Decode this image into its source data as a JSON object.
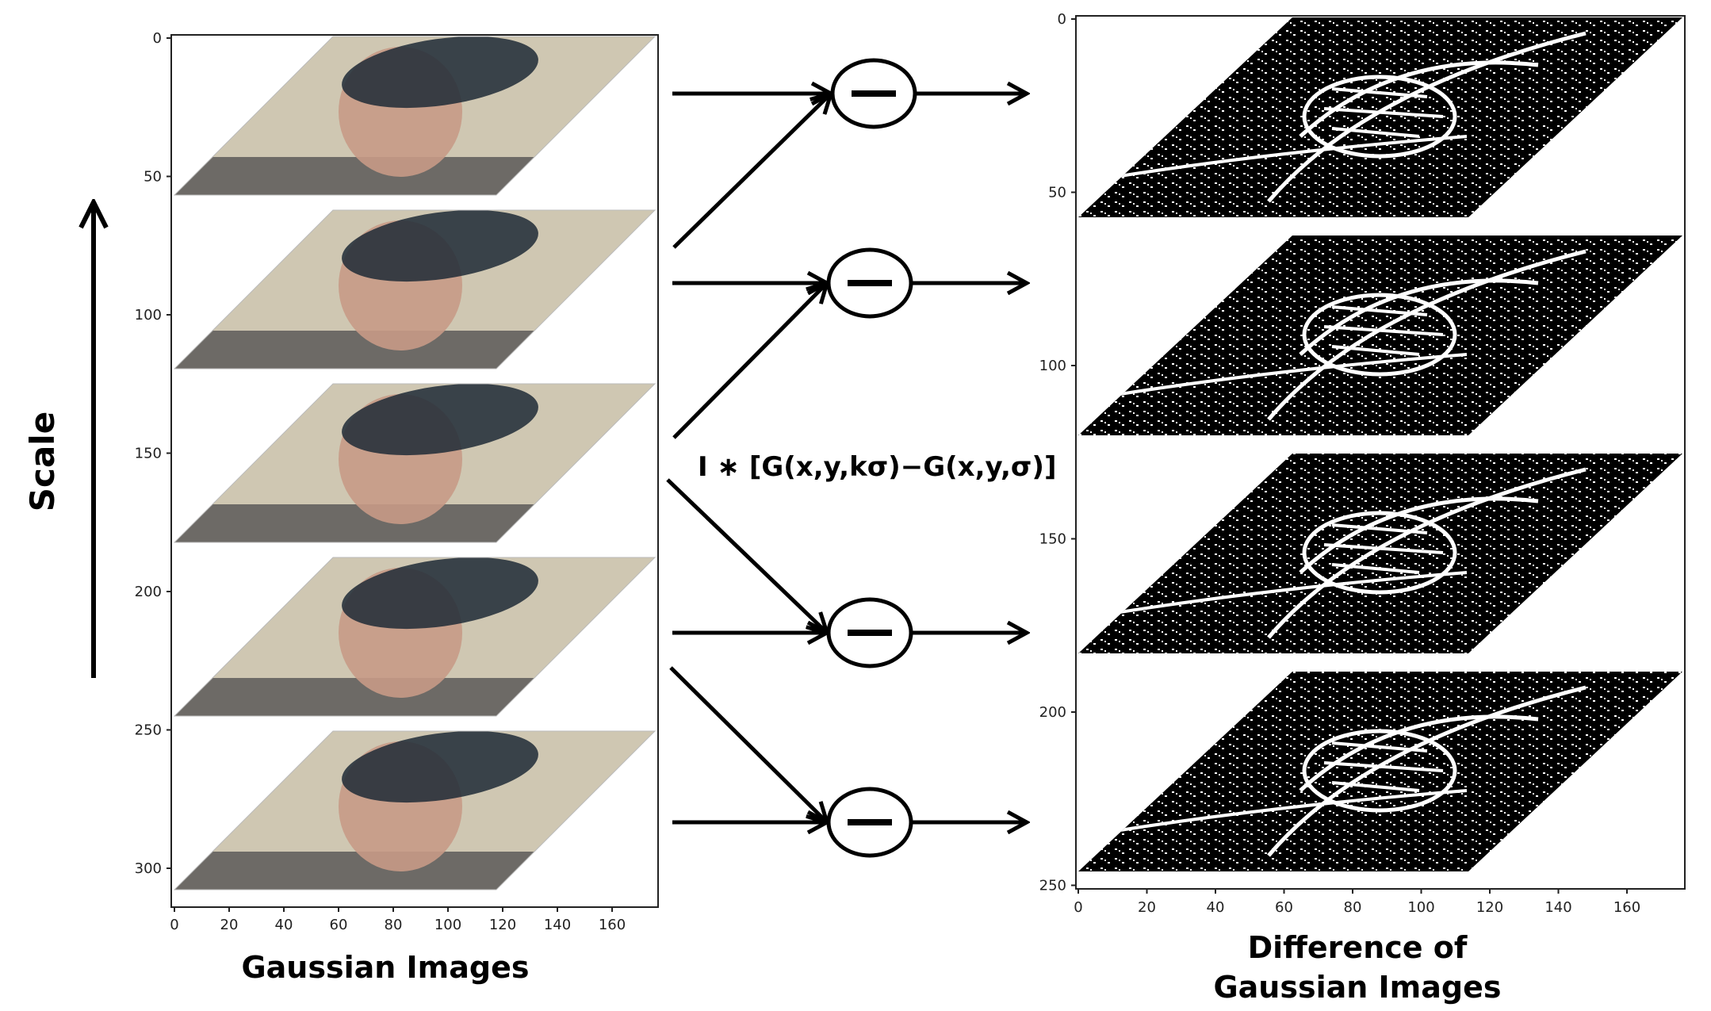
{
  "scale_label": "Scale",
  "formula": "I ∗ [G(x,y,kσ)−G(x,y,σ)]",
  "left_panel": {
    "caption": "Gaussian Images",
    "y_ticks": [
      "0",
      "50",
      "100",
      "150",
      "200",
      "250",
      "300"
    ],
    "x_ticks": [
      "0",
      "20",
      "40",
      "60",
      "80",
      "100",
      "120",
      "140",
      "160"
    ],
    "image_count": 5
  },
  "right_panel": {
    "caption_line1": "Difference of",
    "caption_line2": "Gaussian Images",
    "y_ticks": [
      "0",
      "50",
      "100",
      "150",
      "200",
      "250"
    ],
    "x_ticks": [
      "0",
      "20",
      "40",
      "60",
      "80",
      "100",
      "120",
      "140",
      "160"
    ],
    "image_count": 4
  },
  "operator_symbol": "−",
  "operator_count": 4,
  "colors": {
    "background_beige": "#cfc7b2",
    "shirt_gray": "#6d6a66",
    "hair_dark": "#1f2a36",
    "skin": "#c79a86",
    "dog_background": "#000000",
    "dog_edges": "#ffffff"
  }
}
